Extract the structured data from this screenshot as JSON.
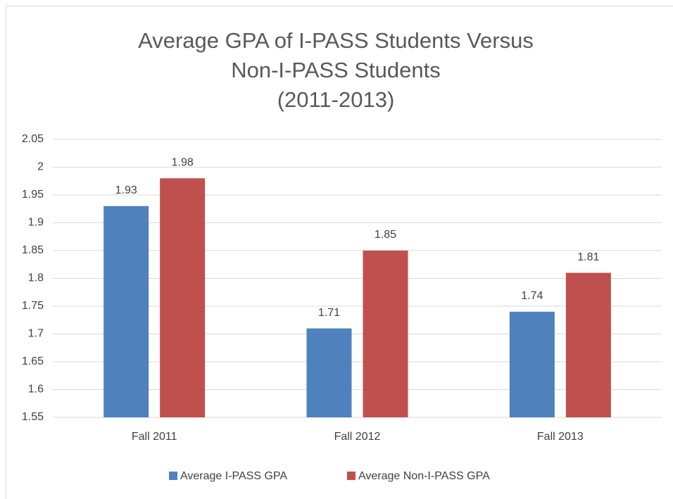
{
  "chart_data": {
    "type": "bar",
    "title": [
      "Average GPA of I-PASS Students Versus",
      "Non-I-PASS Students",
      "(2011-2013)"
    ],
    "categories": [
      "Fall 2011",
      "Fall 2012",
      "Fall 2013"
    ],
    "series": [
      {
        "name": "Average I-PASS GPA",
        "color": "#4f81bd",
        "values": [
          1.93,
          1.71,
          1.74
        ]
      },
      {
        "name": "Average Non-I-PASS GPA",
        "color": "#c0504d",
        "values": [
          1.98,
          1.85,
          1.81
        ]
      }
    ],
    "ylim": [
      1.55,
      2.05
    ],
    "yticks": [
      1.55,
      1.6,
      1.65,
      1.7,
      1.75,
      1.8,
      1.85,
      1.9,
      1.95,
      2,
      2.05
    ],
    "grid": true,
    "legend": "bottom"
  }
}
